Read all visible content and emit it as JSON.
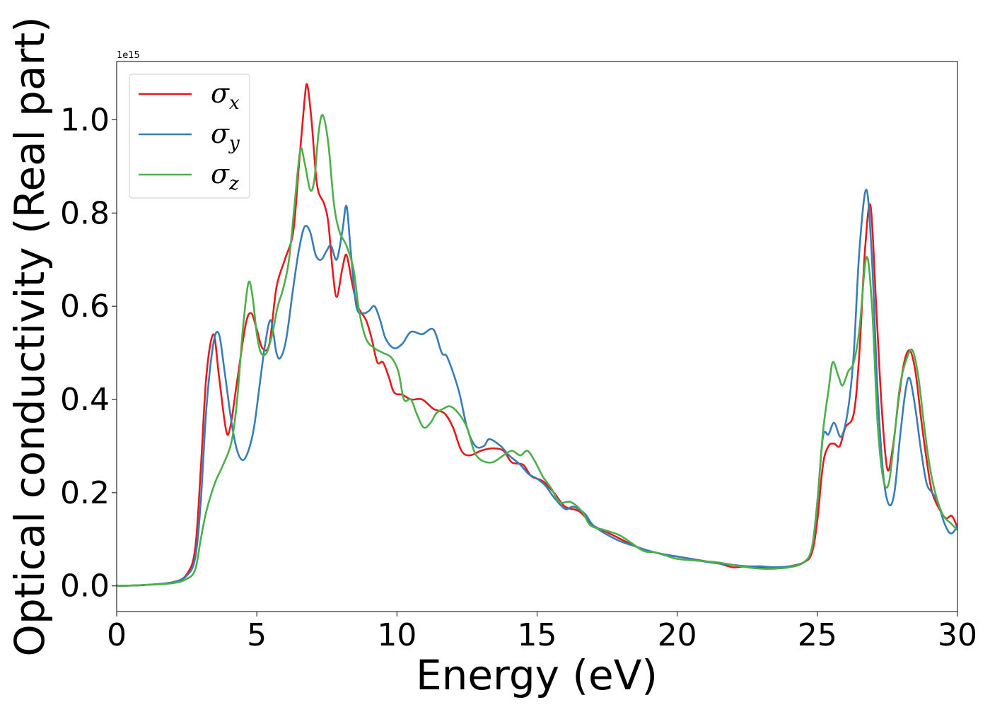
{
  "chart_data": {
    "type": "line",
    "xlabel": "Energy (eV)",
    "ylabel": "Optical conductivity (Real part)",
    "y_offset_text": "1e15",
    "xlim": [
      0,
      30
    ],
    "ylim": [
      -0.055,
      1.125
    ],
    "x_ticks": [
      0,
      5,
      10,
      15,
      20,
      25,
      30
    ],
    "y_ticks": [
      0.0,
      0.2,
      0.4,
      0.6,
      0.8,
      1.0
    ],
    "x_tick_labels": [
      "0",
      "5",
      "10",
      "15",
      "20",
      "25",
      "30"
    ],
    "y_tick_labels": [
      "0.0",
      "0.2",
      "0.4",
      "0.6",
      "0.8",
      "1.0"
    ],
    "grid": false,
    "legend_position": "top-left",
    "series": [
      {
        "name": "σx",
        "symbol": "σ",
        "subscript": "x",
        "color": "#e41a1c",
        "points": [
          [
            0,
            0.0
          ],
          [
            1,
            0.002
          ],
          [
            2,
            0.008
          ],
          [
            2.5,
            0.025
          ],
          [
            2.8,
            0.08
          ],
          [
            3.0,
            0.25
          ],
          [
            3.2,
            0.45
          ],
          [
            3.45,
            0.54
          ],
          [
            3.65,
            0.45
          ],
          [
            3.9,
            0.335
          ],
          [
            4.05,
            0.34
          ],
          [
            4.3,
            0.44
          ],
          [
            4.6,
            0.56
          ],
          [
            4.8,
            0.585
          ],
          [
            5.0,
            0.55
          ],
          [
            5.2,
            0.51
          ],
          [
            5.45,
            0.52
          ],
          [
            5.7,
            0.64
          ],
          [
            6.0,
            0.7
          ],
          [
            6.3,
            0.76
          ],
          [
            6.5,
            0.9
          ],
          [
            6.7,
            1.04
          ],
          [
            6.8,
            1.075
          ],
          [
            6.95,
            1.0
          ],
          [
            7.15,
            0.86
          ],
          [
            7.4,
            0.82
          ],
          [
            7.55,
            0.78
          ],
          [
            7.7,
            0.68
          ],
          [
            7.85,
            0.62
          ],
          [
            8.05,
            0.68
          ],
          [
            8.2,
            0.71
          ],
          [
            8.4,
            0.65
          ],
          [
            8.6,
            0.6
          ],
          [
            8.9,
            0.57
          ],
          [
            9.1,
            0.53
          ],
          [
            9.3,
            0.48
          ],
          [
            9.5,
            0.48
          ],
          [
            9.7,
            0.45
          ],
          [
            9.9,
            0.415
          ],
          [
            10.2,
            0.41
          ],
          [
            10.5,
            0.4
          ],
          [
            10.9,
            0.4
          ],
          [
            11.3,
            0.38
          ],
          [
            11.7,
            0.37
          ],
          [
            12.0,
            0.34
          ],
          [
            12.3,
            0.29
          ],
          [
            12.6,
            0.28
          ],
          [
            13.0,
            0.29
          ],
          [
            13.4,
            0.295
          ],
          [
            13.8,
            0.29
          ],
          [
            14.1,
            0.265
          ],
          [
            14.5,
            0.26
          ],
          [
            14.8,
            0.235
          ],
          [
            15.2,
            0.225
          ],
          [
            15.6,
            0.2
          ],
          [
            16.0,
            0.17
          ],
          [
            16.5,
            0.16
          ],
          [
            17.0,
            0.13
          ],
          [
            17.5,
            0.115
          ],
          [
            18.0,
            0.1
          ],
          [
            18.5,
            0.085
          ],
          [
            19.0,
            0.075
          ],
          [
            19.5,
            0.068
          ],
          [
            20.0,
            0.063
          ],
          [
            20.5,
            0.058
          ],
          [
            21.0,
            0.053
          ],
          [
            21.5,
            0.048
          ],
          [
            22.0,
            0.04
          ],
          [
            22.5,
            0.042
          ],
          [
            23.0,
            0.04
          ],
          [
            23.5,
            0.04
          ],
          [
            24.0,
            0.042
          ],
          [
            24.5,
            0.05
          ],
          [
            24.8,
            0.07
          ],
          [
            25.0,
            0.14
          ],
          [
            25.2,
            0.26
          ],
          [
            25.4,
            0.3
          ],
          [
            25.6,
            0.305
          ],
          [
            25.8,
            0.3
          ],
          [
            26.0,
            0.34
          ],
          [
            26.3,
            0.37
          ],
          [
            26.5,
            0.5
          ],
          [
            26.7,
            0.72
          ],
          [
            26.9,
            0.815
          ],
          [
            27.1,
            0.6
          ],
          [
            27.3,
            0.38
          ],
          [
            27.5,
            0.25
          ],
          [
            27.7,
            0.3
          ],
          [
            27.9,
            0.4
          ],
          [
            28.1,
            0.48
          ],
          [
            28.3,
            0.505
          ],
          [
            28.5,
            0.46
          ],
          [
            28.7,
            0.36
          ],
          [
            28.9,
            0.27
          ],
          [
            29.1,
            0.2
          ],
          [
            29.4,
            0.16
          ],
          [
            29.6,
            0.145
          ],
          [
            29.8,
            0.15
          ],
          [
            30.0,
            0.125
          ]
        ]
      },
      {
        "name": "σy",
        "symbol": "σ",
        "subscript": "y",
        "color": "#377eb8",
        "points": [
          [
            0,
            0.0
          ],
          [
            1,
            0.002
          ],
          [
            2,
            0.008
          ],
          [
            2.5,
            0.022
          ],
          [
            2.8,
            0.06
          ],
          [
            3.0,
            0.18
          ],
          [
            3.2,
            0.38
          ],
          [
            3.45,
            0.52
          ],
          [
            3.65,
            0.54
          ],
          [
            3.85,
            0.46
          ],
          [
            4.1,
            0.35
          ],
          [
            4.3,
            0.29
          ],
          [
            4.5,
            0.27
          ],
          [
            4.7,
            0.29
          ],
          [
            4.9,
            0.34
          ],
          [
            5.1,
            0.43
          ],
          [
            5.3,
            0.52
          ],
          [
            5.5,
            0.57
          ],
          [
            5.7,
            0.5
          ],
          [
            5.85,
            0.49
          ],
          [
            6.05,
            0.53
          ],
          [
            6.3,
            0.64
          ],
          [
            6.5,
            0.72
          ],
          [
            6.7,
            0.77
          ],
          [
            6.9,
            0.76
          ],
          [
            7.1,
            0.71
          ],
          [
            7.3,
            0.7
          ],
          [
            7.5,
            0.72
          ],
          [
            7.65,
            0.73
          ],
          [
            7.85,
            0.7
          ],
          [
            8.05,
            0.76
          ],
          [
            8.2,
            0.815
          ],
          [
            8.35,
            0.72
          ],
          [
            8.55,
            0.6
          ],
          [
            8.8,
            0.585
          ],
          [
            9.0,
            0.59
          ],
          [
            9.2,
            0.6
          ],
          [
            9.4,
            0.57
          ],
          [
            9.6,
            0.53
          ],
          [
            9.9,
            0.51
          ],
          [
            10.2,
            0.52
          ],
          [
            10.5,
            0.545
          ],
          [
            10.9,
            0.54
          ],
          [
            11.3,
            0.55
          ],
          [
            11.6,
            0.5
          ],
          [
            11.8,
            0.49
          ],
          [
            12.2,
            0.42
          ],
          [
            12.5,
            0.34
          ],
          [
            12.8,
            0.3
          ],
          [
            13.1,
            0.3
          ],
          [
            13.3,
            0.315
          ],
          [
            13.7,
            0.3
          ],
          [
            14.0,
            0.28
          ],
          [
            14.4,
            0.26
          ],
          [
            14.7,
            0.24
          ],
          [
            15.0,
            0.23
          ],
          [
            15.3,
            0.215
          ],
          [
            15.6,
            0.19
          ],
          [
            16.0,
            0.165
          ],
          [
            16.3,
            0.17
          ],
          [
            16.7,
            0.155
          ],
          [
            17.0,
            0.13
          ],
          [
            17.5,
            0.11
          ],
          [
            18.0,
            0.095
          ],
          [
            18.5,
            0.085
          ],
          [
            19.0,
            0.075
          ],
          [
            19.5,
            0.068
          ],
          [
            20.0,
            0.063
          ],
          [
            20.5,
            0.058
          ],
          [
            21.0,
            0.052
          ],
          [
            21.5,
            0.048
          ],
          [
            22.0,
            0.045
          ],
          [
            22.5,
            0.042
          ],
          [
            23.0,
            0.042
          ],
          [
            23.5,
            0.04
          ],
          [
            24.0,
            0.042
          ],
          [
            24.5,
            0.05
          ],
          [
            24.8,
            0.08
          ],
          [
            25.0,
            0.18
          ],
          [
            25.2,
            0.32
          ],
          [
            25.4,
            0.325
          ],
          [
            25.6,
            0.35
          ],
          [
            25.85,
            0.32
          ],
          [
            26.1,
            0.38
          ],
          [
            26.3,
            0.5
          ],
          [
            26.5,
            0.72
          ],
          [
            26.75,
            0.85
          ],
          [
            26.95,
            0.7
          ],
          [
            27.15,
            0.42
          ],
          [
            27.35,
            0.24
          ],
          [
            27.55,
            0.175
          ],
          [
            27.75,
            0.2
          ],
          [
            27.95,
            0.32
          ],
          [
            28.15,
            0.42
          ],
          [
            28.3,
            0.445
          ],
          [
            28.5,
            0.38
          ],
          [
            28.7,
            0.29
          ],
          [
            28.9,
            0.22
          ],
          [
            29.1,
            0.2
          ],
          [
            29.3,
            0.18
          ],
          [
            29.5,
            0.14
          ],
          [
            29.7,
            0.115
          ],
          [
            29.85,
            0.115
          ],
          [
            30.0,
            0.13
          ]
        ]
      },
      {
        "name": "σz",
        "symbol": "σ",
        "subscript": "z",
        "color": "#4daf4a",
        "points": [
          [
            0,
            0.0
          ],
          [
            1,
            0.002
          ],
          [
            2,
            0.006
          ],
          [
            2.5,
            0.015
          ],
          [
            2.8,
            0.035
          ],
          [
            3.0,
            0.1
          ],
          [
            3.2,
            0.16
          ],
          [
            3.5,
            0.22
          ],
          [
            3.8,
            0.26
          ],
          [
            4.1,
            0.31
          ],
          [
            4.3,
            0.4
          ],
          [
            4.5,
            0.55
          ],
          [
            4.7,
            0.65
          ],
          [
            4.85,
            0.62
          ],
          [
            5.0,
            0.54
          ],
          [
            5.15,
            0.5
          ],
          [
            5.35,
            0.5
          ],
          [
            5.55,
            0.54
          ],
          [
            5.75,
            0.6
          ],
          [
            5.95,
            0.64
          ],
          [
            6.15,
            0.7
          ],
          [
            6.35,
            0.82
          ],
          [
            6.55,
            0.935
          ],
          [
            6.7,
            0.91
          ],
          [
            6.9,
            0.85
          ],
          [
            7.05,
            0.87
          ],
          [
            7.2,
            0.97
          ],
          [
            7.35,
            1.01
          ],
          [
            7.55,
            0.95
          ],
          [
            7.75,
            0.82
          ],
          [
            7.95,
            0.76
          ],
          [
            8.2,
            0.73
          ],
          [
            8.45,
            0.68
          ],
          [
            8.65,
            0.59
          ],
          [
            8.9,
            0.53
          ],
          [
            9.2,
            0.51
          ],
          [
            9.5,
            0.5
          ],
          [
            9.8,
            0.49
          ],
          [
            10.05,
            0.46
          ],
          [
            10.25,
            0.4
          ],
          [
            10.5,
            0.4
          ],
          [
            10.7,
            0.37
          ],
          [
            10.95,
            0.34
          ],
          [
            11.2,
            0.35
          ],
          [
            11.4,
            0.37
          ],
          [
            11.65,
            0.38
          ],
          [
            11.9,
            0.385
          ],
          [
            12.2,
            0.37
          ],
          [
            12.5,
            0.34
          ],
          [
            12.75,
            0.29
          ],
          [
            13.0,
            0.27
          ],
          [
            13.4,
            0.265
          ],
          [
            13.8,
            0.28
          ],
          [
            14.1,
            0.29
          ],
          [
            14.4,
            0.28
          ],
          [
            14.65,
            0.29
          ],
          [
            14.9,
            0.27
          ],
          [
            15.2,
            0.235
          ],
          [
            15.5,
            0.21
          ],
          [
            15.8,
            0.18
          ],
          [
            16.2,
            0.18
          ],
          [
            16.6,
            0.16
          ],
          [
            16.9,
            0.13
          ],
          [
            17.4,
            0.12
          ],
          [
            17.9,
            0.11
          ],
          [
            18.3,
            0.095
          ],
          [
            18.8,
            0.075
          ],
          [
            19.2,
            0.072
          ],
          [
            19.6,
            0.065
          ],
          [
            20.0,
            0.058
          ],
          [
            20.5,
            0.055
          ],
          [
            21.0,
            0.053
          ],
          [
            21.5,
            0.05
          ],
          [
            22.0,
            0.045
          ],
          [
            22.5,
            0.04
          ],
          [
            23.0,
            0.037
          ],
          [
            23.5,
            0.037
          ],
          [
            24.0,
            0.04
          ],
          [
            24.5,
            0.05
          ],
          [
            24.8,
            0.08
          ],
          [
            25.0,
            0.18
          ],
          [
            25.2,
            0.33
          ],
          [
            25.4,
            0.42
          ],
          [
            25.55,
            0.48
          ],
          [
            25.75,
            0.45
          ],
          [
            25.9,
            0.43
          ],
          [
            26.1,
            0.46
          ],
          [
            26.3,
            0.48
          ],
          [
            26.5,
            0.55
          ],
          [
            26.75,
            0.705
          ],
          [
            26.95,
            0.6
          ],
          [
            27.15,
            0.35
          ],
          [
            27.35,
            0.23
          ],
          [
            27.55,
            0.22
          ],
          [
            27.75,
            0.32
          ],
          [
            27.95,
            0.43
          ],
          [
            28.2,
            0.49
          ],
          [
            28.4,
            0.505
          ],
          [
            28.6,
            0.45
          ],
          [
            28.8,
            0.35
          ],
          [
            29.0,
            0.26
          ],
          [
            29.25,
            0.19
          ],
          [
            29.5,
            0.15
          ],
          [
            29.75,
            0.135
          ],
          [
            30.0,
            0.12
          ]
        ]
      }
    ]
  }
}
